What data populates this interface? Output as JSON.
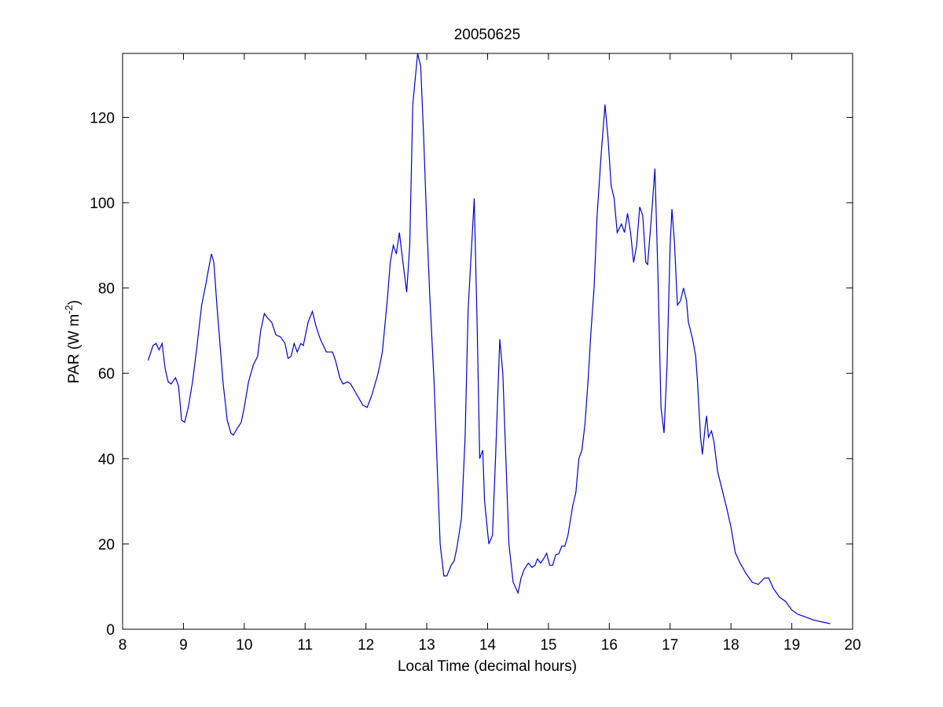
{
  "chart_data": {
    "type": "line",
    "title": "20050625",
    "x_label": "Local Time (decimal hours)",
    "y_label": {
      "text": "PAR (W m",
      "superscript": "-2",
      "suffix": ")"
    },
    "xlim": [
      8,
      20
    ],
    "xticks": [
      8,
      9,
      10,
      11,
      12,
      13,
      14,
      15,
      16,
      17,
      18,
      19,
      20
    ],
    "ylim": [
      0,
      135
    ],
    "yticks": [
      0,
      20,
      40,
      60,
      80,
      100,
      120
    ],
    "grid": false,
    "series": [
      {
        "color": "#0000cc",
        "x": [
          8.42,
          8.5,
          8.55,
          8.6,
          8.65,
          8.7,
          8.75,
          8.8,
          8.87,
          8.92,
          8.97,
          9.02,
          9.08,
          9.15,
          9.22,
          9.3,
          9.37,
          9.42,
          9.46,
          9.5,
          9.55,
          9.6,
          9.65,
          9.72,
          9.78,
          9.82,
          9.88,
          9.95,
          10.0,
          10.07,
          10.15,
          10.22,
          10.27,
          10.33,
          10.38,
          10.45,
          10.52,
          10.6,
          10.67,
          10.72,
          10.77,
          10.82,
          10.87,
          10.93,
          10.97,
          11.05,
          11.12,
          11.18,
          11.25,
          11.35,
          11.45,
          11.5,
          11.57,
          11.62,
          11.7,
          11.75,
          11.85,
          11.95,
          12.02,
          12.1,
          12.2,
          12.27,
          12.35,
          12.4,
          12.45,
          12.5,
          12.55,
          12.6,
          12.67,
          12.72,
          12.77,
          12.85,
          12.9,
          12.95,
          13.0,
          13.05,
          13.12,
          13.18,
          13.22,
          13.28,
          13.33,
          13.4,
          13.45,
          13.5,
          13.57,
          13.63,
          13.68,
          13.73,
          13.78,
          13.83,
          13.87,
          13.92,
          13.95,
          14.02,
          14.08,
          14.13,
          14.2,
          14.25,
          14.3,
          14.35,
          14.42,
          14.5,
          14.55,
          14.6,
          14.67,
          14.73,
          14.78,
          14.82,
          14.87,
          14.92,
          14.97,
          15.02,
          15.07,
          15.12,
          15.17,
          15.22,
          15.27,
          15.32,
          15.4,
          15.45,
          15.5,
          15.55,
          15.6,
          15.65,
          15.7,
          15.75,
          15.8,
          15.87,
          15.93,
          15.98,
          16.03,
          16.08,
          16.13,
          16.2,
          16.25,
          16.3,
          16.35,
          16.4,
          16.45,
          16.5,
          16.55,
          16.6,
          16.63,
          16.7,
          16.75,
          16.8,
          16.85,
          16.9,
          16.95,
          17.0,
          17.03,
          17.07,
          17.12,
          17.17,
          17.22,
          17.27,
          17.3,
          17.37,
          17.42,
          17.45,
          17.5,
          17.53,
          17.58,
          17.6,
          17.63,
          17.68,
          17.72,
          17.78,
          17.85,
          17.92,
          18.0,
          18.07,
          18.15,
          18.25,
          18.35,
          18.45,
          18.55,
          18.62,
          18.7,
          18.8,
          18.9,
          19.0,
          19.1,
          19.2,
          19.35,
          19.5,
          19.63
        ],
        "values": [
          63,
          66.5,
          67,
          65.5,
          67,
          61,
          58,
          57.5,
          59,
          57,
          49,
          48.5,
          52,
          58,
          66,
          76,
          81,
          85,
          88,
          86,
          76,
          67,
          58,
          49,
          46,
          45.5,
          47,
          48.5,
          52,
          58,
          62,
          64,
          70,
          74,
          73,
          72,
          69,
          68.5,
          67,
          63.5,
          64,
          67,
          65,
          67,
          66.5,
          72,
          74.5,
          71,
          68,
          65,
          65,
          63,
          59,
          57.5,
          58,
          57.5,
          55,
          52.5,
          52,
          55,
          60,
          65,
          77,
          86,
          90,
          88,
          93,
          87,
          79,
          90,
          123,
          135,
          132,
          115,
          95,
          78,
          58,
          35,
          20,
          12.5,
          12.5,
          15,
          16,
          19.5,
          26,
          45,
          75,
          88,
          101,
          70,
          40,
          42,
          30,
          20,
          22,
          40,
          68,
          60,
          40,
          20,
          11,
          8.5,
          12,
          14,
          15.5,
          14.5,
          15,
          16.5,
          15.5,
          16.5,
          17.8,
          15,
          15,
          17.5,
          17.7,
          19.5,
          19.5,
          22,
          29,
          32,
          40,
          42,
          48,
          58,
          70,
          80,
          97,
          112,
          123,
          115,
          104,
          101,
          93,
          95,
          93,
          97.5,
          93,
          86,
          90,
          99,
          97,
          86,
          85.5,
          98,
          108,
          83,
          52,
          46,
          62,
          90,
          98.5,
          91,
          76,
          77,
          80,
          77,
          72,
          68,
          64,
          58,
          45,
          41,
          48,
          50,
          45,
          46.5,
          44,
          37,
          33,
          29,
          24,
          18,
          15.5,
          13,
          11,
          10.5,
          12,
          12,
          9.5,
          7.5,
          6.5,
          4.5,
          3.5,
          3,
          2.2,
          1.7,
          1.3
        ]
      }
    ]
  }
}
